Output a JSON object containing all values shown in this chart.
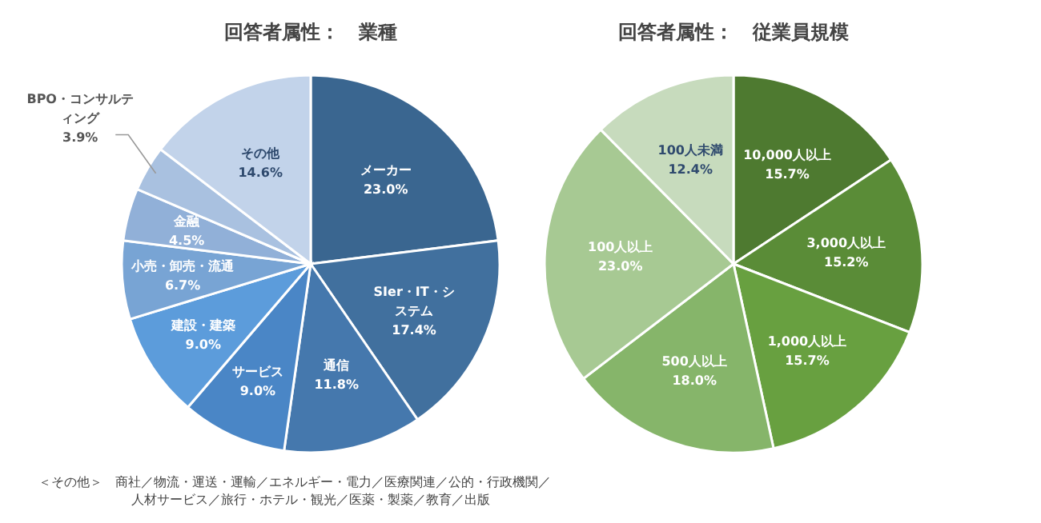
{
  "chart_data": [
    {
      "type": "pie",
      "title": "回答者属性：　業種",
      "categories": [
        "メーカー",
        "SIer・IT・システム",
        "通信",
        "サービス",
        "建設・建築",
        "小売・卸売・流通",
        "金融",
        "BPO・コンサルティング",
        "その他"
      ],
      "values": [
        23.0,
        17.4,
        11.8,
        9.0,
        9.0,
        6.7,
        4.5,
        3.9,
        14.6
      ],
      "value_labels": [
        "23.0%",
        "17.4%",
        "11.8%",
        "9.0%",
        "9.0%",
        "6.7%",
        "4.5%",
        "3.9%",
        "14.6%"
      ],
      "colors": [
        "#3a6690",
        "#41709e",
        "#4578ad",
        "#4a86c6",
        "#5c9cdb",
        "#78a4d4",
        "#91b0d8",
        "#a9c1e0",
        "#c2d3ea"
      ],
      "annotations": [
        "＜その他＞　商社／物流・運送・運輸／エネルギー・電力／医療関連／公的・行政機関／",
        "人材サービス／旅行・ホテル・観光／医薬・製薬／教育／出版"
      ]
    },
    {
      "type": "pie",
      "title": "回答者属性：　従業員規模",
      "categories": [
        "10,000人以上",
        "3,000人以上",
        "1,000人以上",
        "500人以上",
        "100人以上",
        "100人未満"
      ],
      "values": [
        15.7,
        15.2,
        15.7,
        18.0,
        23.0,
        12.4
      ],
      "value_labels": [
        "15.7%",
        "15.2%",
        "15.7%",
        "18.0%",
        "23.0%",
        "12.4%"
      ],
      "colors": [
        "#4e7a30",
        "#5a8c37",
        "#68a040",
        "#86b56a",
        "#a7c993",
        "#c7dbbd"
      ]
    }
  ]
}
